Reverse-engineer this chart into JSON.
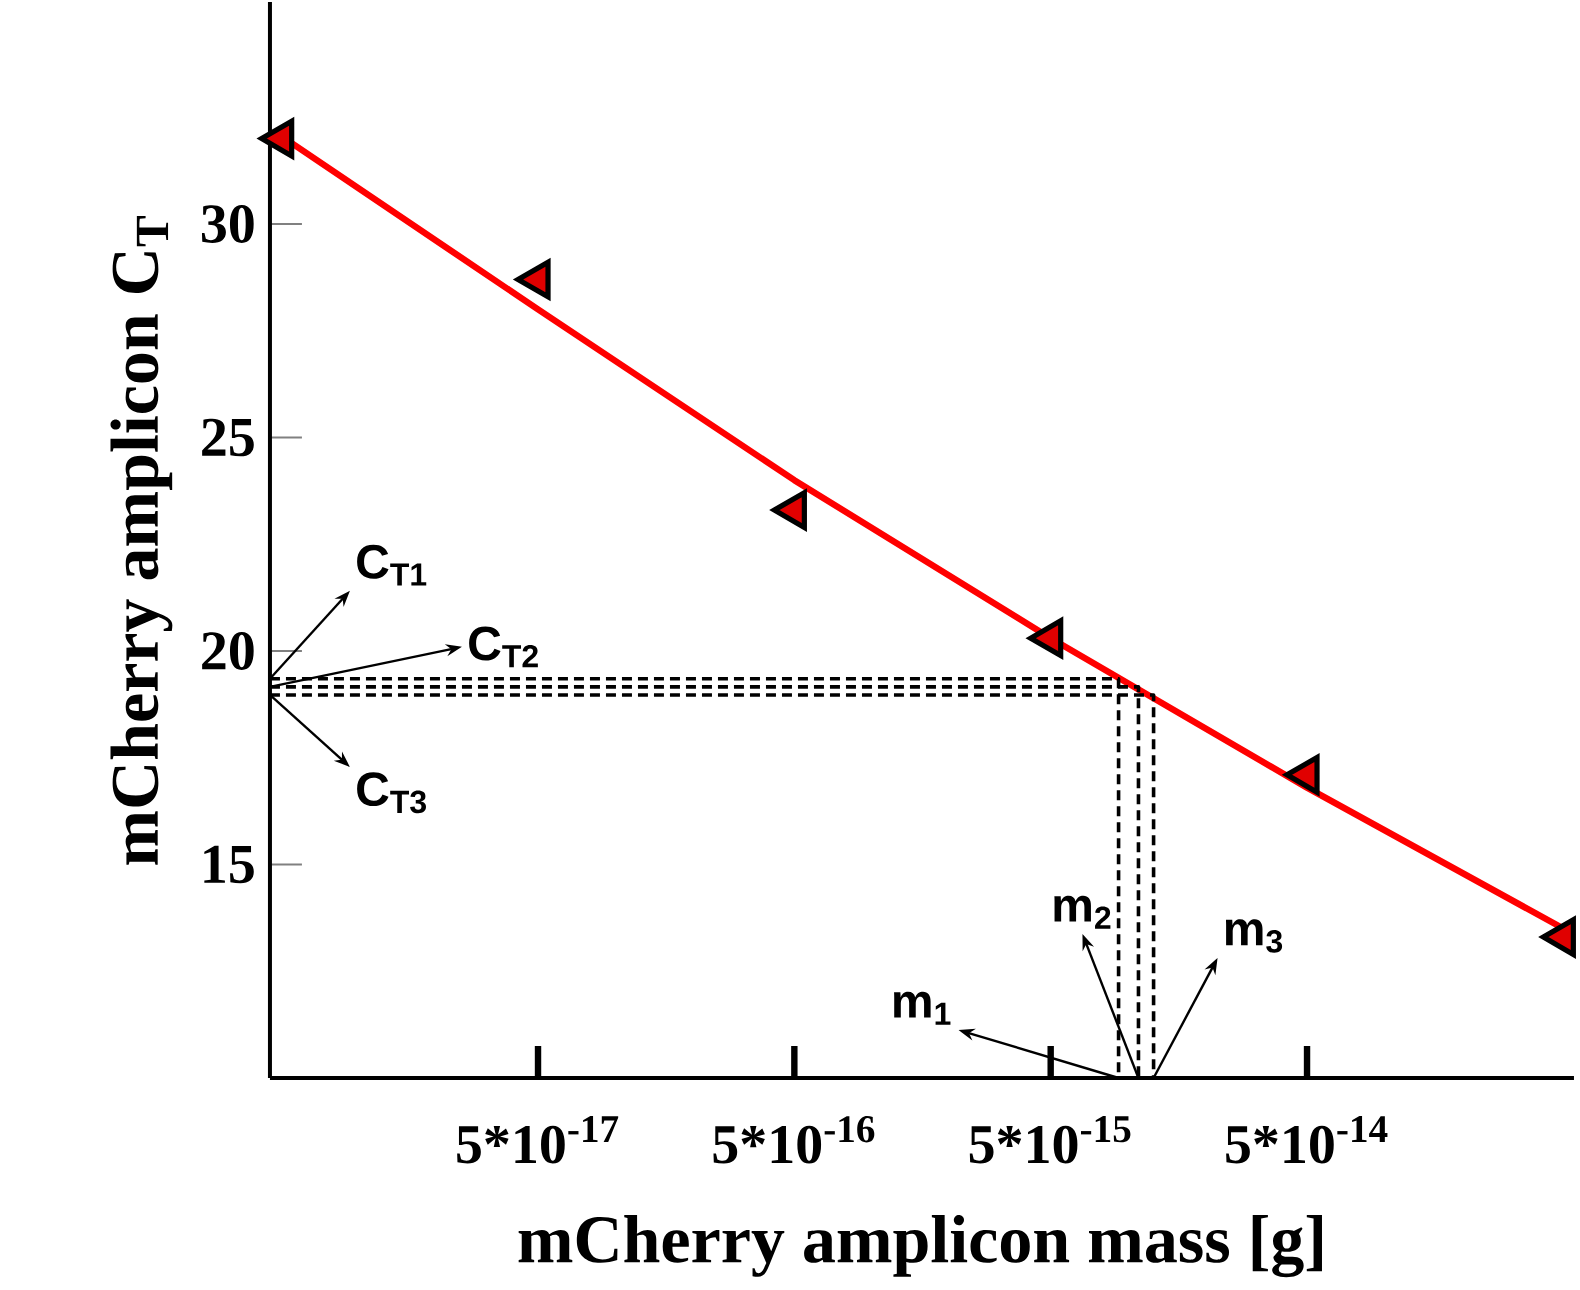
{
  "chart_data": {
    "type": "scatter",
    "xlabel": "mCherry amplicon mass [g]",
    "ylabel": "mCherry amplicon C$_{T}$",
    "log": "x",
    "xlim": [
      4.5e-18,
      5.5e-13
    ],
    "ylim": [
      10,
      35.2
    ],
    "xticks": [
      {
        "value": 5e-17,
        "label": "5*10$^{-17}$"
      },
      {
        "value": 5e-16,
        "label": "5*10$^{-16}$"
      },
      {
        "value": 5e-15,
        "label": "5*10$^{-15}$"
      },
      {
        "value": 5e-14,
        "label": "5*10$^{-14}$"
      }
    ],
    "yticks": [
      15,
      20,
      25,
      30
    ],
    "grid": false,
    "series": [
      {
        "color": "#e00000",
        "marker": "triangle",
        "x": [
          5e-18,
          5e-17,
          5e-16,
          5e-15,
          5e-14,
          5e-13
        ],
        "values": [
          32.0,
          28.7,
          23.3,
          20.3,
          17.1,
          13.3
        ]
      },
      {
        "type": "line",
        "color": "#ff0000",
        "marker": "none",
        "line_style": "solid",
        "x": [
          5e-18,
          5e-17,
          5e-16,
          5e-15,
          5e-14,
          5e-13
        ],
        "values": [
          32.05,
          28.0,
          24.0,
          20.3,
          16.8,
          13.5
        ]
      },
      {
        "type": "line",
        "color": "#000000",
        "marker": "none",
        "line_style": "dashed",
        "x": [
          4.5e-18,
          9.2e-15,
          9.2e-15
        ],
        "values": [
          19.35,
          19.35,
          10
        ]
      },
      {
        "type": "line",
        "color": "#000000",
        "marker": "none",
        "line_style": "dashed",
        "x": [
          4.5e-18,
          1.1e-14,
          1.1e-14
        ],
        "values": [
          19.16,
          19.16,
          10
        ]
      },
      {
        "type": "line",
        "color": "#000000",
        "marker": "none",
        "line_style": "dashed",
        "x": [
          4.5e-18,
          1.26e-14,
          1.26e-14
        ],
        "values": [
          18.97,
          18.97,
          10
        ]
      }
    ],
    "annotations": [
      {
        "text": "C$_{T1}$",
        "x": 4.5e-18,
        "y": 19.35
      },
      {
        "text": "C$_{T2}$",
        "x": 4.5e-18,
        "y": 19.16
      },
      {
        "text": "C$_{T3}$",
        "x": 4.5e-18,
        "y": 18.97
      },
      {
        "text": "m$_{1}$",
        "x": 9.2e-15,
        "y": 10
      },
      {
        "text": "m$_{2}$",
        "x": 1.1e-14,
        "y": 10
      },
      {
        "text": "m$_{3}$",
        "x": 1.26e-14,
        "y": 10
      }
    ]
  }
}
